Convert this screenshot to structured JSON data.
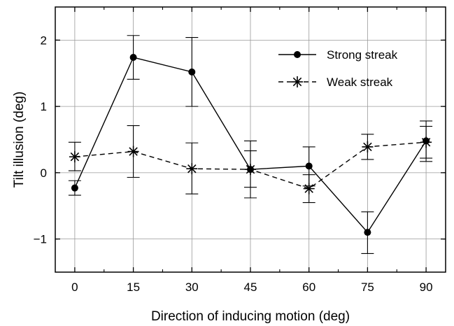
{
  "chart_data": {
    "type": "line",
    "title": "",
    "xlabel": "Direction of inducing motion (deg)",
    "ylabel": "Tilt illusion (deg)",
    "x": [
      0,
      15,
      30,
      45,
      60,
      75,
      90
    ],
    "xticks": [
      0,
      15,
      30,
      45,
      60,
      75,
      90
    ],
    "xtick_labels": [
      "0",
      "15",
      "30",
      "45",
      "60",
      "75",
      "90"
    ],
    "yticks": [
      -1,
      0,
      1,
      2
    ],
    "ytick_labels": [
      "−1",
      "0",
      "1",
      "2"
    ],
    "xlim": [
      -5,
      95
    ],
    "ylim": [
      -1.5,
      2.5
    ],
    "grid": true,
    "legend_position": "top-right",
    "series": [
      {
        "name": "Strong streak",
        "marker": "filled-circle",
        "line_style": "solid",
        "values": [
          -0.23,
          1.74,
          1.52,
          0.05,
          0.1,
          -0.9,
          0.48
        ],
        "error_low": [
          -0.34,
          1.41,
          1.0,
          -0.38,
          -0.2,
          -1.22,
          0.17
        ],
        "error_high": [
          -0.12,
          2.07,
          2.04,
          0.48,
          0.39,
          -0.59,
          0.78
        ]
      },
      {
        "name": "Weak streak",
        "marker": "asterisk",
        "line_style": "dashed",
        "values": [
          0.24,
          0.32,
          0.06,
          0.05,
          -0.24,
          0.39,
          0.46
        ],
        "error_low": [
          0.03,
          -0.07,
          -0.32,
          -0.22,
          -0.45,
          0.2,
          0.22
        ],
        "error_high": [
          0.46,
          0.71,
          0.45,
          0.33,
          -0.03,
          0.58,
          0.7
        ]
      }
    ]
  }
}
